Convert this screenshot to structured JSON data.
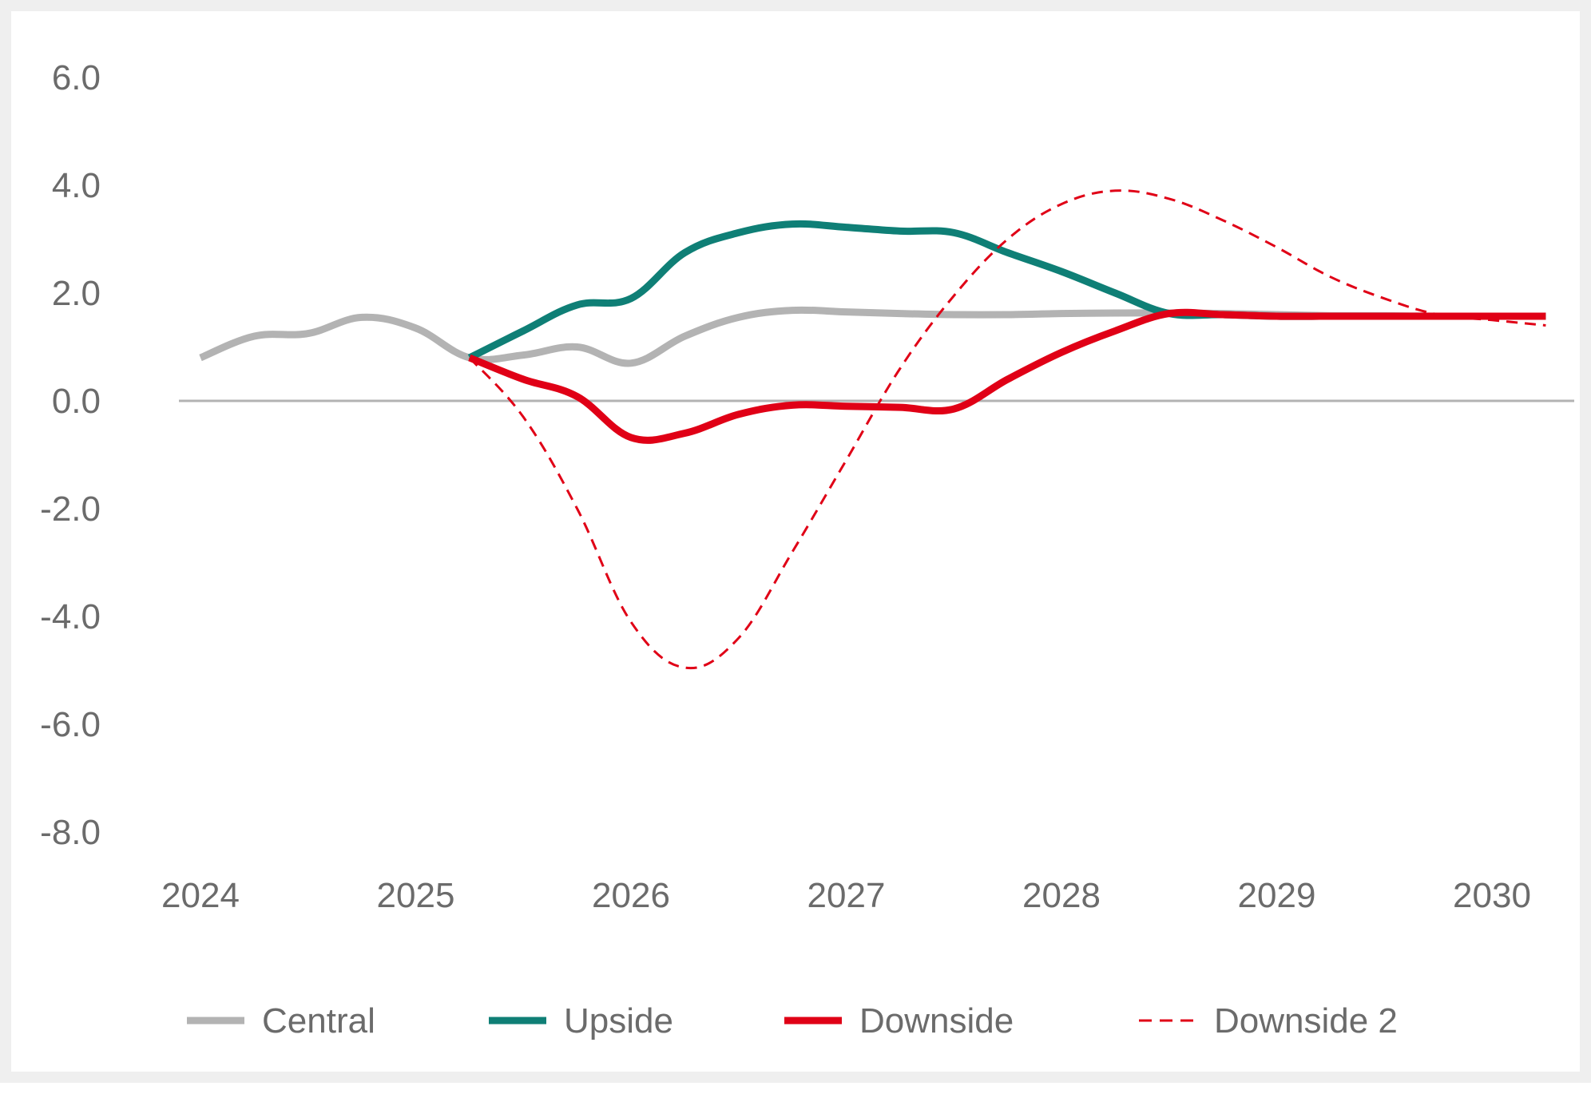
{
  "chart_data": {
    "type": "line",
    "title": "",
    "xlabel": "",
    "ylabel": "",
    "ylim": [
      -8,
      6
    ],
    "yticks": [
      "6.0",
      "4.0",
      "2.0",
      "0.0",
      "-2.0",
      "-4.0",
      "-6.0",
      "-8.0"
    ],
    "xlim": [
      2024,
      2030.4
    ],
    "xticks": [
      "2024",
      "2025",
      "2026",
      "2027",
      "2028",
      "2029",
      "2030"
    ],
    "zero_line": true,
    "grid": false,
    "legend_position": "bottom",
    "series": [
      {
        "name": "Central",
        "color": "#b3b3b3",
        "style": "solid",
        "width": "thick",
        "points": [
          [
            2024.0,
            0.8
          ],
          [
            2024.25,
            1.2
          ],
          [
            2024.5,
            1.25
          ],
          [
            2024.75,
            1.55
          ],
          [
            2025.0,
            1.35
          ],
          [
            2025.25,
            0.8
          ],
          [
            2025.5,
            0.85
          ],
          [
            2025.75,
            1.0
          ],
          [
            2026.0,
            0.7
          ],
          [
            2026.25,
            1.2
          ],
          [
            2026.5,
            1.55
          ],
          [
            2026.75,
            1.68
          ],
          [
            2027.0,
            1.65
          ],
          [
            2027.25,
            1.62
          ],
          [
            2027.5,
            1.6
          ],
          [
            2027.75,
            1.6
          ],
          [
            2028.0,
            1.62
          ],
          [
            2028.25,
            1.63
          ],
          [
            2028.5,
            1.63
          ],
          [
            2028.75,
            1.62
          ],
          [
            2029.0,
            1.6
          ],
          [
            2029.25,
            1.58
          ],
          [
            2029.5,
            1.58
          ],
          [
            2029.75,
            1.57
          ],
          [
            2030.0,
            1.57
          ],
          [
            2030.25,
            1.57
          ]
        ]
      },
      {
        "name": "Upside",
        "color": "#0f7f76",
        "style": "solid",
        "width": "thick",
        "points": [
          [
            2025.25,
            0.8
          ],
          [
            2025.5,
            1.3
          ],
          [
            2025.75,
            1.78
          ],
          [
            2026.0,
            1.9
          ],
          [
            2026.25,
            2.75
          ],
          [
            2026.5,
            3.12
          ],
          [
            2026.75,
            3.28
          ],
          [
            2027.0,
            3.22
          ],
          [
            2027.25,
            3.15
          ],
          [
            2027.5,
            3.12
          ],
          [
            2027.75,
            2.75
          ],
          [
            2028.0,
            2.4
          ],
          [
            2028.25,
            2.0
          ],
          [
            2028.5,
            1.62
          ],
          [
            2028.75,
            1.6
          ],
          [
            2029.0,
            1.57
          ],
          [
            2029.25,
            1.57
          ],
          [
            2029.5,
            1.57
          ],
          [
            2029.75,
            1.57
          ],
          [
            2030.0,
            1.57
          ],
          [
            2030.25,
            1.57
          ]
        ]
      },
      {
        "name": "Downside",
        "color": "#e00016",
        "style": "solid",
        "width": "thick",
        "points": [
          [
            2025.25,
            0.8
          ],
          [
            2025.5,
            0.4
          ],
          [
            2025.75,
            0.08
          ],
          [
            2026.0,
            -0.68
          ],
          [
            2026.25,
            -0.6
          ],
          [
            2026.5,
            -0.25
          ],
          [
            2026.75,
            -0.08
          ],
          [
            2027.0,
            -0.1
          ],
          [
            2027.25,
            -0.12
          ],
          [
            2027.5,
            -0.15
          ],
          [
            2027.75,
            0.4
          ],
          [
            2028.0,
            0.9
          ],
          [
            2028.25,
            1.3
          ],
          [
            2028.5,
            1.62
          ],
          [
            2028.75,
            1.6
          ],
          [
            2029.0,
            1.57
          ],
          [
            2029.25,
            1.57
          ],
          [
            2029.5,
            1.57
          ],
          [
            2029.75,
            1.57
          ],
          [
            2030.0,
            1.57
          ],
          [
            2030.25,
            1.57
          ]
        ]
      },
      {
        "name": "Downside 2",
        "color": "#e00016",
        "style": "dashed",
        "width": "thin",
        "points": [
          [
            2025.25,
            0.8
          ],
          [
            2025.5,
            -0.3
          ],
          [
            2025.75,
            -2.0
          ],
          [
            2026.0,
            -4.1
          ],
          [
            2026.25,
            -4.95
          ],
          [
            2026.5,
            -4.4
          ],
          [
            2026.75,
            -2.8
          ],
          [
            2027.0,
            -1.1
          ],
          [
            2027.25,
            0.6
          ],
          [
            2027.5,
            1.95
          ],
          [
            2027.75,
            3.0
          ],
          [
            2028.0,
            3.65
          ],
          [
            2028.25,
            3.9
          ],
          [
            2028.5,
            3.75
          ],
          [
            2028.75,
            3.35
          ],
          [
            2029.0,
            2.85
          ],
          [
            2029.25,
            2.3
          ],
          [
            2029.5,
            1.9
          ],
          [
            2029.75,
            1.6
          ],
          [
            2030.0,
            1.5
          ],
          [
            2030.25,
            1.4
          ]
        ]
      }
    ]
  }
}
